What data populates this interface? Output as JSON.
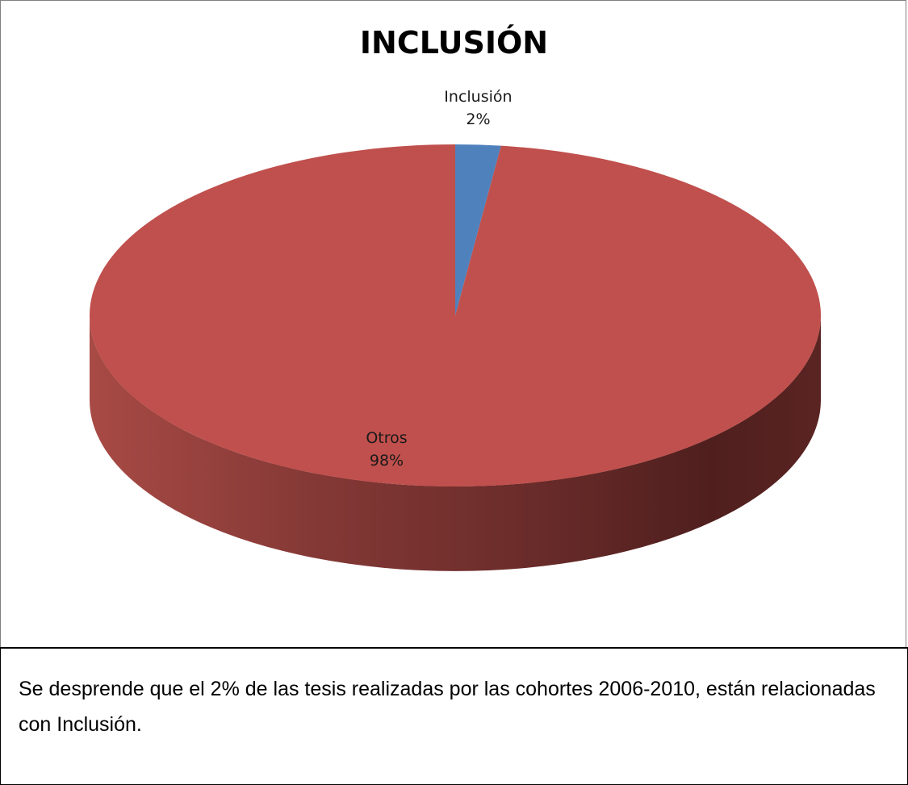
{
  "chart_data": {
    "type": "pie",
    "title": "INCLUSIÓN",
    "three_d": true,
    "slices": [
      {
        "label": "Inclusión",
        "value": 2,
        "value_label": "2%",
        "color": "#4f81bd"
      },
      {
        "label": "Otros",
        "value": 98,
        "value_label": "98%",
        "color": "#c0504d"
      }
    ],
    "legend": "none"
  },
  "caption": {
    "text": "Se desprende que el 2% de las tesis realizadas por las cohortes 2006-2010, están relacionadas con Inclusión."
  }
}
